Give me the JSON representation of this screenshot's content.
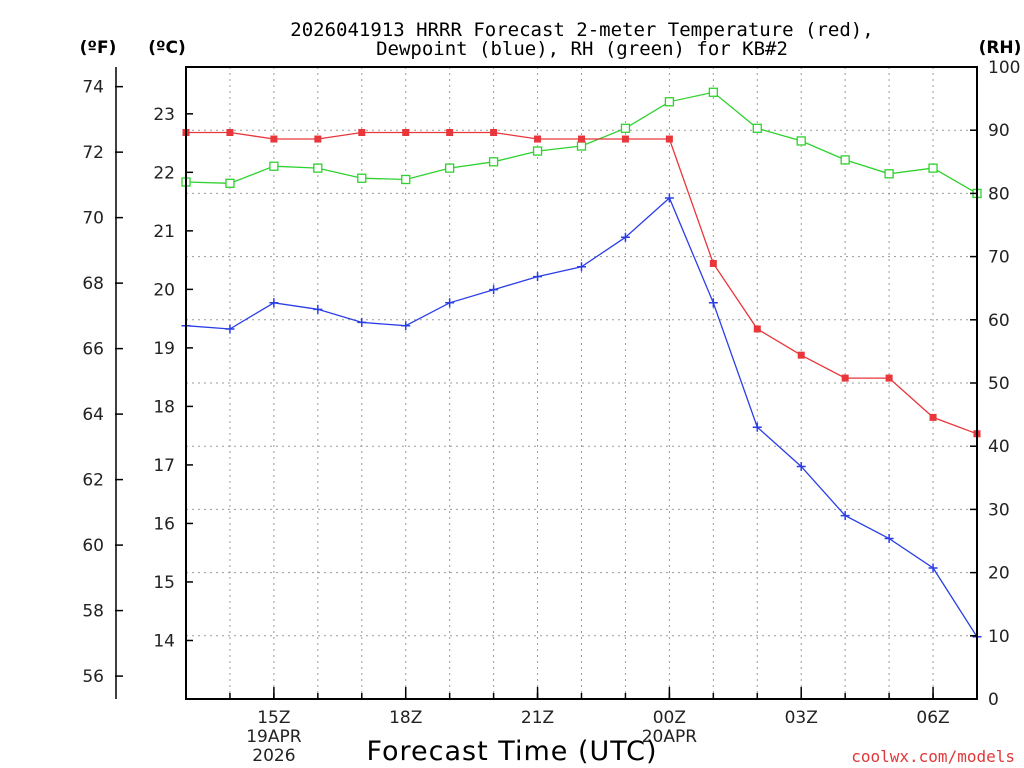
{
  "title_line1": "2026041913 HRRR Forecast 2-meter Temperature (red),",
  "title_line2": "Dewpoint (blue), RH (green) for KB#2",
  "unit_f": "(ºF)",
  "unit_c": "(ºC)",
  "unit_rh": "(RH)",
  "xlabel": "Forecast Time (UTC)",
  "credit": "coolwx.com/models",
  "colors": {
    "temp": "#e8363a",
    "dewpoint": "#2a3ee8",
    "rh": "#2ed22e"
  },
  "chart_data": {
    "type": "line",
    "x_hours": [
      13,
      14,
      15,
      16,
      17,
      18,
      19,
      20,
      21,
      22,
      23,
      24,
      25,
      26,
      27,
      28,
      29,
      30,
      31
    ],
    "xlim": [
      13,
      31
    ],
    "x_ticks": [
      {
        "hour": 15,
        "lines": [
          "15Z",
          "19APR",
          "2026"
        ]
      },
      {
        "hour": 18,
        "lines": [
          "18Z"
        ]
      },
      {
        "hour": 21,
        "lines": [
          "21Z"
        ]
      },
      {
        "hour": 24,
        "lines": [
          "00Z",
          "20APR"
        ]
      },
      {
        "hour": 27,
        "lines": [
          "03Z"
        ]
      },
      {
        "hour": 30,
        "lines": [
          "06Z"
        ]
      }
    ],
    "axes": {
      "fahrenheit": {
        "range": [
          55.3,
          74.6
        ],
        "ticks": [
          56,
          58,
          60,
          62,
          64,
          66,
          68,
          70,
          72,
          74
        ]
      },
      "celsius": {
        "range": [
          13.0,
          23.8
        ],
        "ticks": [
          14,
          15,
          16,
          17,
          18,
          19,
          20,
          21,
          22,
          23
        ]
      },
      "rh": {
        "range": [
          0,
          100
        ],
        "ticks": [
          0,
          10,
          20,
          30,
          40,
          50,
          60,
          70,
          80,
          90,
          100
        ]
      }
    },
    "series": [
      {
        "name": "Temperature",
        "units": "degF",
        "color_key": "temp",
        "marker": "filled-square",
        "values": [
          72.6,
          72.6,
          72.4,
          72.4,
          72.6,
          72.6,
          72.6,
          72.6,
          72.4,
          72.4,
          72.4,
          72.4,
          68.6,
          66.6,
          65.8,
          65.1,
          65.1,
          63.9,
          63.4
        ]
      },
      {
        "name": "Dewpoint",
        "units": "degF",
        "color_key": "dewpoint",
        "marker": "plus",
        "values": [
          66.7,
          66.6,
          67.4,
          67.2,
          66.8,
          66.7,
          67.4,
          67.8,
          68.2,
          68.5,
          69.4,
          70.6,
          67.4,
          63.6,
          62.4,
          60.9,
          60.2,
          59.3,
          57.2
        ]
      },
      {
        "name": "RH",
        "units": "percent",
        "color_key": "rh",
        "marker": "open-square",
        "values": [
          81.8,
          81.6,
          84.3,
          84.0,
          82.4,
          82.2,
          84.0,
          85.0,
          86.7,
          87.5,
          90.3,
          94.5,
          96.0,
          90.3,
          88.3,
          85.3,
          83.1,
          84.0,
          80.0
        ]
      }
    ]
  }
}
